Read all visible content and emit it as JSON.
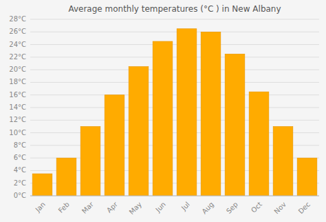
{
  "chart_data": {
    "type": "bar",
    "title": "Average monthly temperatures (°C ) in New Albany",
    "categories": [
      "Jan",
      "Feb",
      "Mar",
      "Apr",
      "May",
      "Jun",
      "Jul",
      "Aug",
      "Sep",
      "Oct",
      "Nov",
      "Dec"
    ],
    "values": [
      3.5,
      6.0,
      11.0,
      16.0,
      20.5,
      24.5,
      26.5,
      26.0,
      22.5,
      16.5,
      11.0,
      6.0
    ],
    "color": "#FFAB00",
    "ylim": [
      0,
      28
    ],
    "yticks": [
      {
        "value": 0,
        "label": "0°C"
      },
      {
        "value": 2,
        "label": "2°C"
      },
      {
        "value": 4,
        "label": "4°C"
      },
      {
        "value": 6,
        "label": "6°C"
      },
      {
        "value": 8,
        "label": "8°C"
      },
      {
        "value": 10,
        "label": "10°C"
      },
      {
        "value": 12,
        "label": "12°C"
      },
      {
        "value": 14,
        "label": "14°C"
      },
      {
        "value": 16,
        "label": "16°C"
      },
      {
        "value": 18,
        "label": "18°C"
      },
      {
        "value": 20,
        "label": "20°C"
      },
      {
        "value": 22,
        "label": "22°C"
      },
      {
        "value": 24,
        "label": "24°C"
      },
      {
        "value": 26,
        "label": "26°C"
      },
      {
        "value": 28,
        "label": "28°C"
      }
    ],
    "grid": true
  }
}
